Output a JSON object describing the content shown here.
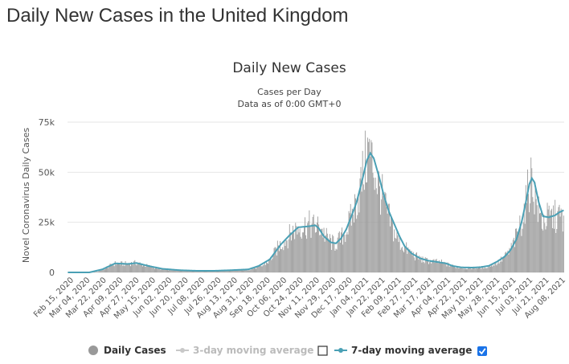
{
  "page": {
    "heading": "Daily New Cases in the United Kingdom"
  },
  "chart_data": {
    "type": "bar",
    "title": "Daily New Cases",
    "subtitle_1": "Cases per Day",
    "subtitle_2": "Data as of 0:00 GMT+0",
    "ylabel": "Novel Coronavirus Daily Cases",
    "ylim": [
      0,
      75000
    ],
    "yticks": [
      {
        "value": 0,
        "label": "0"
      },
      {
        "value": 25000,
        "label": "25k"
      },
      {
        "value": 50000,
        "label": "50k"
      },
      {
        "value": 75000,
        "label": "75k"
      }
    ],
    "xticks": [
      "Feb 15, 2020",
      "Mar 04, 2020",
      "Mar 22, 2020",
      "Apr 09, 2020",
      "Apr 27, 2020",
      "May 15, 2020",
      "Jun 02, 2020",
      "Jun 20, 2020",
      "Jul 08, 2020",
      "Jul 26, 2020",
      "Aug 13, 2020",
      "Aug 31, 2020",
      "Sep 18, 2020",
      "Oct 06, 2020",
      "Oct 24, 2020",
      "Nov 11, 2020",
      "Nov 29, 2020",
      "Dec 17, 2020",
      "Jan 04, 2021",
      "Jan 22, 2021",
      "Feb 09, 2021",
      "Feb 27, 2021",
      "Mar 17, 2021",
      "Apr 04, 2021",
      "Apr 22, 2021",
      "May 10, 2021",
      "May 28, 2021",
      "Jun 15, 2021",
      "Jul 03, 2021",
      "Jul 21, 2021",
      "Aug 08, 2021"
    ],
    "series": [
      {
        "name": "Daily Cases",
        "kind": "bar",
        "keypoints": [
          [
            0,
            0
          ],
          [
            25,
            0
          ],
          [
            35,
            400
          ],
          [
            45,
            2500
          ],
          [
            55,
            4500
          ],
          [
            65,
            4300
          ],
          [
            80,
            4800
          ],
          [
            95,
            3000
          ],
          [
            110,
            1700
          ],
          [
            130,
            1000
          ],
          [
            150,
            700
          ],
          [
            170,
            700
          ],
          [
            190,
            1000
          ],
          [
            210,
            1400
          ],
          [
            225,
            3000
          ],
          [
            235,
            6000
          ],
          [
            245,
            13000
          ],
          [
            255,
            17000
          ],
          [
            262,
            21000
          ],
          [
            270,
            23000
          ],
          [
            280,
            24000
          ],
          [
            288,
            23000
          ],
          [
            295,
            22500
          ],
          [
            300,
            18000
          ],
          [
            310,
            14000
          ],
          [
            318,
            17000
          ],
          [
            325,
            22000
          ],
          [
            332,
            30000
          ],
          [
            340,
            42000
          ],
          [
            346,
            55000
          ],
          [
            350,
            62000
          ],
          [
            354,
            56000
          ],
          [
            360,
            46000
          ],
          [
            366,
            38000
          ],
          [
            372,
            29000
          ],
          [
            380,
            20000
          ],
          [
            388,
            14000
          ],
          [
            396,
            11000
          ],
          [
            405,
            8000
          ],
          [
            415,
            6000
          ],
          [
            425,
            5500
          ],
          [
            435,
            5000
          ],
          [
            445,
            3500
          ],
          [
            455,
            2500
          ],
          [
            465,
            2200
          ],
          [
            475,
            2300
          ],
          [
            485,
            2600
          ],
          [
            492,
            3500
          ],
          [
            500,
            5000
          ],
          [
            508,
            7500
          ],
          [
            515,
            11000
          ],
          [
            522,
            18000
          ],
          [
            528,
            26000
          ],
          [
            533,
            35000
          ],
          [
            537,
            44000
          ],
          [
            540,
            48000
          ],
          [
            543,
            40000
          ],
          [
            548,
            30000
          ],
          [
            553,
            26000
          ],
          [
            558,
            27000
          ],
          [
            565,
            28000
          ],
          [
            572,
            28000
          ],
          [
            577,
            27000
          ]
        ]
      },
      {
        "name": "3-day moving average",
        "kind": "line",
        "enabled": false
      },
      {
        "name": "7-day moving average",
        "kind": "line",
        "enabled": true,
        "keypoints": [
          [
            0,
            0
          ],
          [
            25,
            0
          ],
          [
            40,
            1500
          ],
          [
            55,
            4500
          ],
          [
            70,
            4200
          ],
          [
            80,
            4700
          ],
          [
            95,
            3100
          ],
          [
            110,
            1800
          ],
          [
            130,
            1100
          ],
          [
            150,
            800
          ],
          [
            170,
            800
          ],
          [
            190,
            1100
          ],
          [
            210,
            1500
          ],
          [
            222,
            3200
          ],
          [
            235,
            6500
          ],
          [
            248,
            14000
          ],
          [
            258,
            18500
          ],
          [
            268,
            22500
          ],
          [
            280,
            23000
          ],
          [
            288,
            23500
          ],
          [
            292,
            22000
          ],
          [
            298,
            18000
          ],
          [
            306,
            15000
          ],
          [
            312,
            14500
          ],
          [
            318,
            17000
          ],
          [
            324,
            21500
          ],
          [
            330,
            28000
          ],
          [
            336,
            35000
          ],
          [
            342,
            45000
          ],
          [
            348,
            56000
          ],
          [
            352,
            59500
          ],
          [
            356,
            57000
          ],
          [
            362,
            48000
          ],
          [
            368,
            38000
          ],
          [
            374,
            30000
          ],
          [
            380,
            24000
          ],
          [
            386,
            18000
          ],
          [
            392,
            13000
          ],
          [
            400,
            9500
          ],
          [
            410,
            7000
          ],
          [
            420,
            5800
          ],
          [
            430,
            5200
          ],
          [
            440,
            4500
          ],
          [
            448,
            3200
          ],
          [
            458,
            2500
          ],
          [
            470,
            2400
          ],
          [
            480,
            2600
          ],
          [
            490,
            3300
          ],
          [
            500,
            5500
          ],
          [
            508,
            7800
          ],
          [
            515,
            11000
          ],
          [
            522,
            16500
          ],
          [
            528,
            25000
          ],
          [
            533,
            35000
          ],
          [
            537,
            44000
          ],
          [
            540,
            47000
          ],
          [
            543,
            45000
          ],
          [
            548,
            35000
          ],
          [
            553,
            28000
          ],
          [
            560,
            27500
          ],
          [
            567,
            28500
          ],
          [
            572,
            30000
          ],
          [
            577,
            31000
          ]
        ]
      }
    ],
    "legend": {
      "daily": "Daily Cases",
      "ma3": "3-day moving average",
      "ma7": "7-day moving average"
    },
    "colors": {
      "bars": "#999999",
      "ma7": "#4aa0b5",
      "ma3": "#c8c8c8",
      "checkbox_checked": "#1a73e8"
    }
  }
}
